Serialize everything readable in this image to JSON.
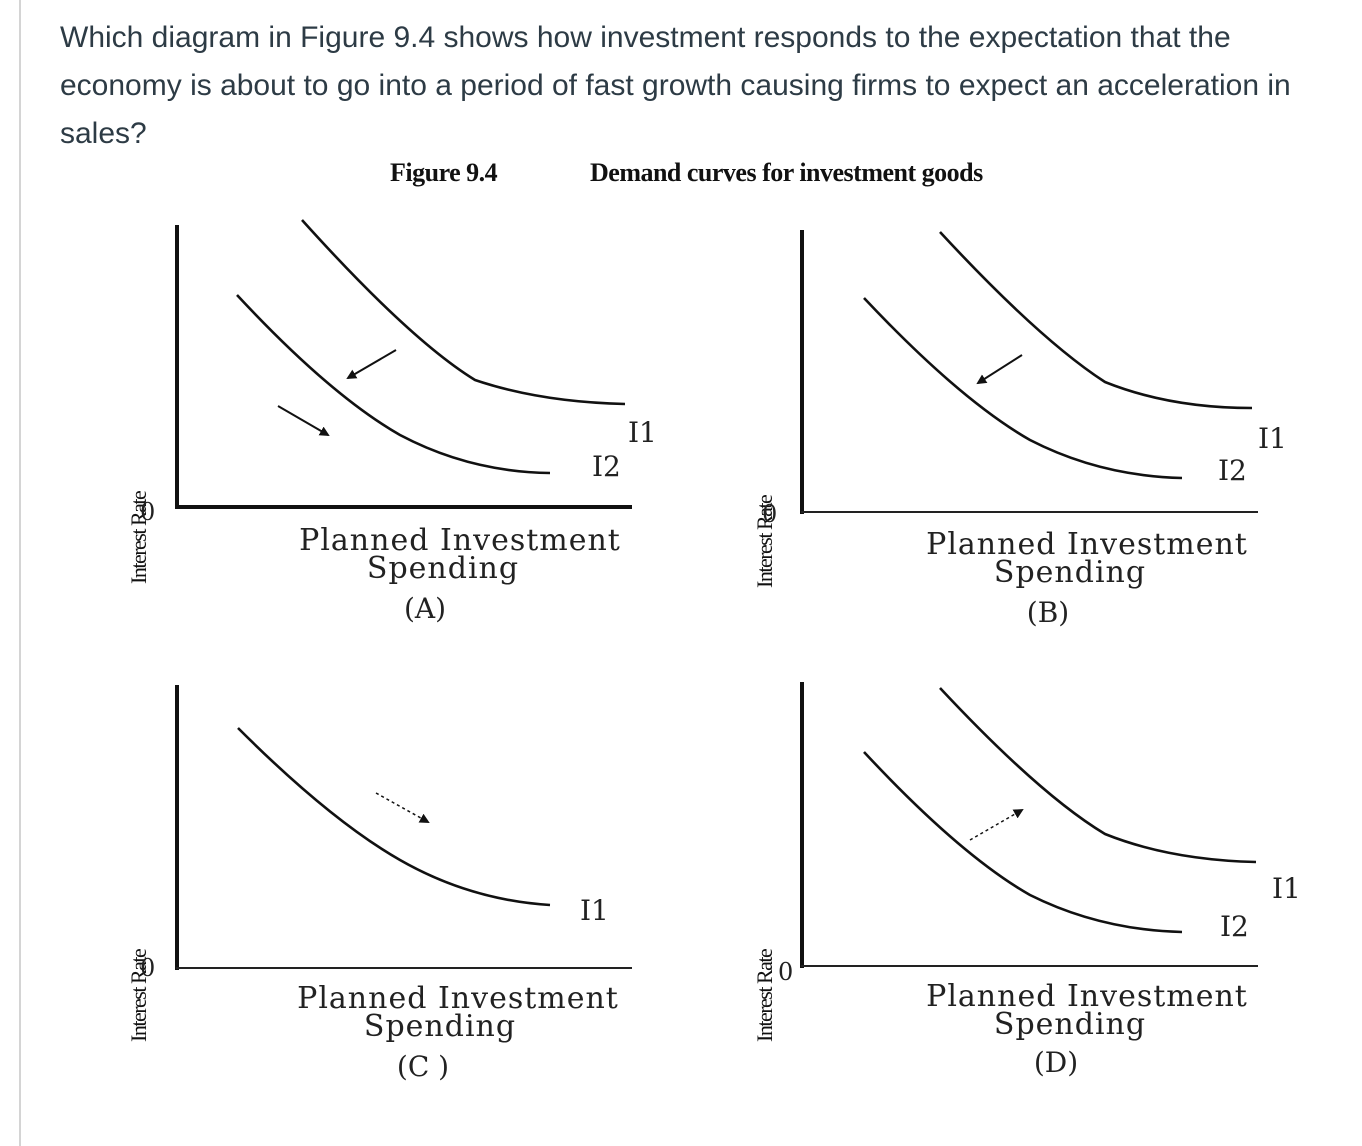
{
  "question": {
    "text": "Which diagram in Figure 9.4 shows how investment responds to the expectation that the economy is about to go into a period of fast growth causing firms to expect an acceleration in sales?"
  },
  "figure": {
    "label": "Figure 9.4",
    "title": "Demand curves for investment goods"
  },
  "panels": [
    {
      "id": "A",
      "y_axis_label": "Interest Rate",
      "origin_label": "0",
      "x_axis_label_line1": "Planned Investment",
      "x_axis_label_line2": "Spending",
      "panel_label": "(A)",
      "curve_labels": [
        "I1",
        "I2"
      ],
      "shift": "I1 to I2, leftward"
    },
    {
      "id": "B",
      "y_axis_label": "Interest Rate",
      "origin_label": "0",
      "x_axis_label_line1": "Planned Investment",
      "x_axis_label_line2": "Spending",
      "panel_label": "(B)",
      "curve_labels": [
        "I1",
        "I2"
      ],
      "shift": "I1 to I2, leftward"
    },
    {
      "id": "C",
      "y_axis_label": "Interest Rate",
      "origin_label": "0",
      "x_axis_label_line1": "Planned Investment",
      "x_axis_label_line2": "Spending",
      "panel_label": "(C )",
      "curve_labels": [
        "I1"
      ],
      "shift": "movement along I1, downward"
    },
    {
      "id": "D",
      "y_axis_label": "Interest Rate",
      "origin_label": "0",
      "x_axis_label_line1": "Planned Investment",
      "x_axis_label_line2": "Spending",
      "panel_label": "(D)",
      "curve_labels": [
        "I1",
        "I2"
      ],
      "shift": "I2 to I1, rightward"
    }
  ]
}
